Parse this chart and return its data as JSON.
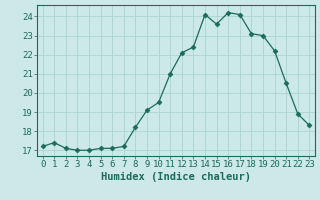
{
  "x": [
    0,
    1,
    2,
    3,
    4,
    5,
    6,
    7,
    8,
    9,
    10,
    11,
    12,
    13,
    14,
    15,
    16,
    17,
    18,
    19,
    20,
    21,
    22,
    23
  ],
  "y": [
    17.2,
    17.4,
    17.1,
    17.0,
    17.0,
    17.1,
    17.1,
    17.2,
    18.2,
    19.1,
    19.5,
    21.0,
    22.1,
    22.4,
    24.1,
    23.6,
    24.2,
    24.1,
    23.1,
    23.0,
    22.2,
    20.5,
    18.9,
    18.3
  ],
  "line_color": "#1a6b5a",
  "marker": "D",
  "marker_size": 2.5,
  "bg_color": "#cce8e8",
  "grid_color": "#aad4d4",
  "xlabel": "Humidex (Indice chaleur)",
  "ylim": [
    16.7,
    24.6
  ],
  "xlim": [
    -0.5,
    23.5
  ],
  "yticks": [
    17,
    18,
    19,
    20,
    21,
    22,
    23,
    24
  ],
  "xticks": [
    0,
    1,
    2,
    3,
    4,
    5,
    6,
    7,
    8,
    9,
    10,
    11,
    12,
    13,
    14,
    15,
    16,
    17,
    18,
    19,
    20,
    21,
    22,
    23
  ],
  "font_color": "#1a6b5a",
  "xlabel_fontsize": 7.5,
  "tick_fontsize": 6.5
}
